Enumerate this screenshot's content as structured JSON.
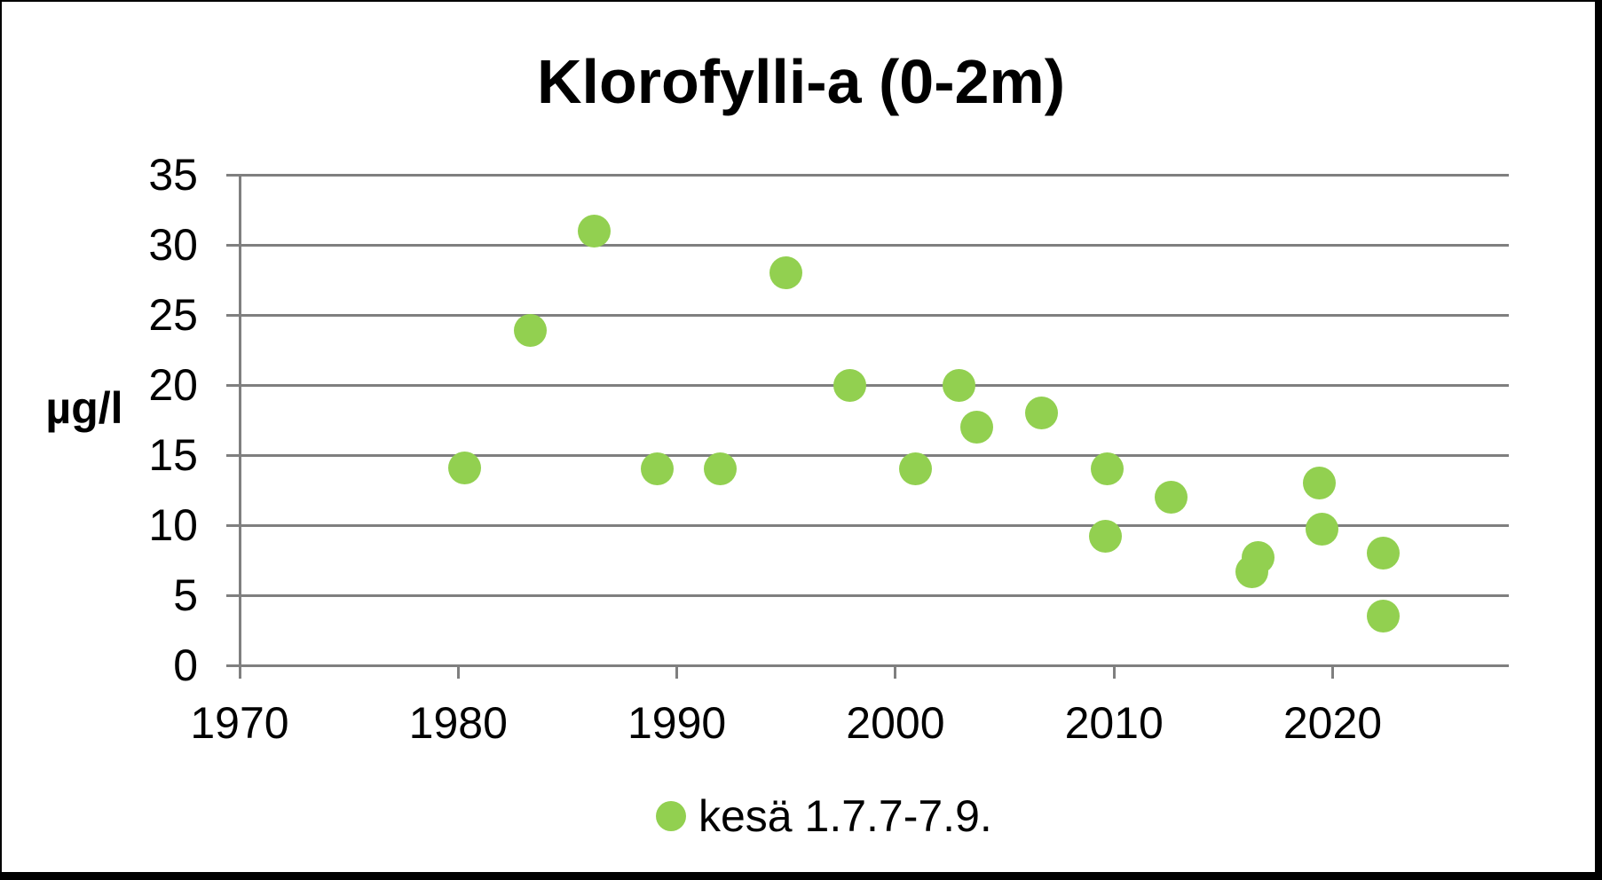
{
  "chart_data": {
    "type": "scatter",
    "title": "Klorofylli-a (0-2m)",
    "ylabel": "µg/l",
    "x_ticks": [
      1970,
      1980,
      1990,
      2000,
      2010,
      2020
    ],
    "y_ticks": [
      0,
      5,
      10,
      15,
      20,
      25,
      30,
      35
    ],
    "xlim": [
      1970,
      2028
    ],
    "ylim": [
      0,
      35
    ],
    "grid": "horizontal",
    "legend_position": "bottom",
    "marker_color": "#92d050",
    "axis_color": "#7f7f7f",
    "series": [
      {
        "name": "kesä 1.7.7-7.9.",
        "points": [
          {
            "x": 1980.3,
            "y": 14.1
          },
          {
            "x": 1983.3,
            "y": 23.9
          },
          {
            "x": 1986.2,
            "y": 31
          },
          {
            "x": 1989.1,
            "y": 14
          },
          {
            "x": 1992.0,
            "y": 14
          },
          {
            "x": 1995.0,
            "y": 28
          },
          {
            "x": 1997.9,
            "y": 20
          },
          {
            "x": 2000.9,
            "y": 14
          },
          {
            "x": 2002.9,
            "y": 20
          },
          {
            "x": 2003.7,
            "y": 17
          },
          {
            "x": 2006.7,
            "y": 18
          },
          {
            "x": 2009.6,
            "y": 9.2
          },
          {
            "x": 2009.7,
            "y": 14
          },
          {
            "x": 2012.6,
            "y": 12
          },
          {
            "x": 2016.3,
            "y": 6.7
          },
          {
            "x": 2016.6,
            "y": 7.7
          },
          {
            "x": 2019.4,
            "y": 13
          },
          {
            "x": 2019.5,
            "y": 9.7
          },
          {
            "x": 2022.3,
            "y": 8
          },
          {
            "x": 2022.3,
            "y": 3.5
          }
        ]
      }
    ]
  }
}
